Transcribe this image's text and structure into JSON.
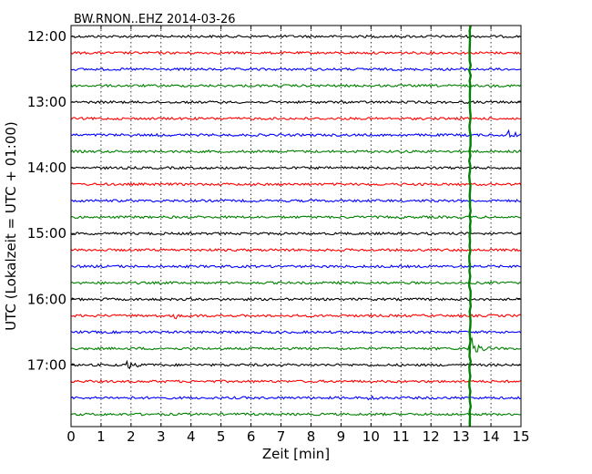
{
  "chart_data": {
    "type": "line",
    "title": "BW.RNON..EHZ 2014-03-26",
    "xlabel": "Zeit  [min]",
    "ylabel": "UTC (Lokalzeit = UTC + 01:00)",
    "xlim": [
      0,
      15
    ],
    "x_ticks": [
      "0",
      "1",
      "2",
      "3",
      "4",
      "5",
      "6",
      "7",
      "8",
      "9",
      "10",
      "11",
      "12",
      "13",
      "14",
      "15"
    ],
    "y_tick_labels": [
      "12:00",
      "13:00",
      "14:00",
      "15:00",
      "16:00",
      "17:00"
    ],
    "trace_start": "12:00",
    "trace_interval_min": 15,
    "trace_count": 24,
    "trace_colors": [
      "#000000",
      "#ff0000",
      "#0000ff",
      "#008000"
    ],
    "vertical_grid": true,
    "events": [
      {
        "trace_start": "13:30",
        "x_min": 14.6,
        "amplitude": "medium"
      },
      {
        "trace_start": "16:15",
        "x_min": 3.5,
        "amplitude": "small"
      },
      {
        "trace_start": "16:45",
        "x_min": 13.3,
        "amplitude": "large"
      },
      {
        "trace_start": "17:00",
        "x_min": 1.9,
        "amplitude": "medium"
      },
      {
        "trace_start": "17:30",
        "x_min": 10.0,
        "amplitude": "small"
      }
    ],
    "global_spike": {
      "x_min": 13.3,
      "color": "#008000"
    }
  }
}
